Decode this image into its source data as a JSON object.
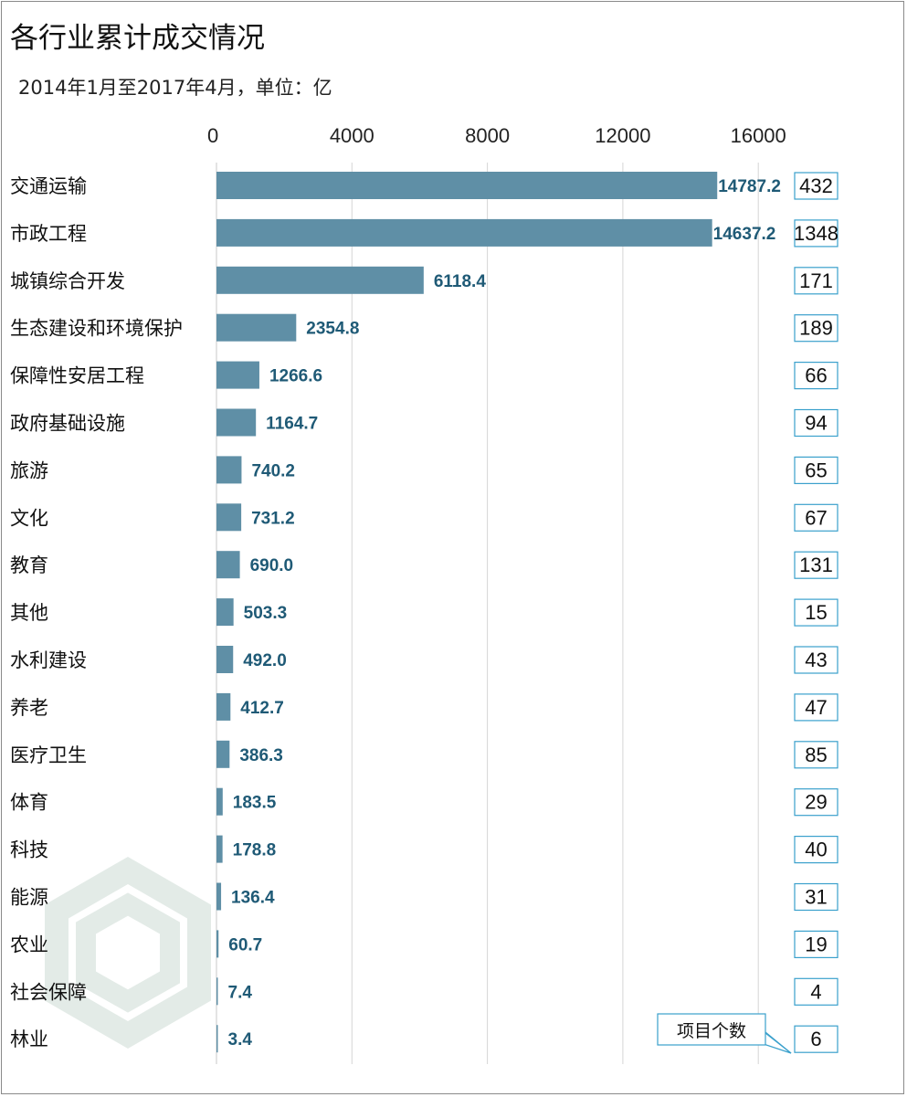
{
  "colors": {
    "bar": "#5f8fa6",
    "value_label": "#1f5a76",
    "count_box_border": "#3aa0cc",
    "gridline": "#d6d6d6",
    "watermark": "#e3ebe7"
  },
  "watermark_icon": "hexagon-logo-icon",
  "chart_data": {
    "type": "bar",
    "orientation": "horizontal",
    "title": "各行业累计成交情况",
    "subtitle": "2014年1月至2017年4月，单位：亿",
    "xlim": [
      0,
      16000
    ],
    "xticks": [
      0,
      4000,
      8000,
      12000,
      16000
    ],
    "xtick_labels": [
      "0",
      "4000",
      "8000",
      "12000",
      "16000"
    ],
    "grid": true,
    "categories": [
      "交通运输",
      "市政工程",
      "城镇综合开发",
      "生态建设和环境保护",
      "保障性安居工程",
      "政府基础设施",
      "旅游",
      "文化",
      "教育",
      "其他",
      "水利建设",
      "养老",
      "医疗卫生",
      "体育",
      "科技",
      "能源",
      "农业",
      "社会保障",
      "林业"
    ],
    "values": [
      14787.2,
      14637.2,
      6118.4,
      2354.8,
      1266.6,
      1164.7,
      740.2,
      731.2,
      690.0,
      503.3,
      492.0,
      412.7,
      386.3,
      183.5,
      178.8,
      136.4,
      60.7,
      7.4,
      3.4
    ],
    "value_labels": [
      "14787.2",
      "14637.2",
      "6118.4",
      "2354.8",
      "1266.6",
      "1164.7",
      "740.2",
      "731.2",
      "690.0",
      "503.3",
      "492.0",
      "412.7",
      "386.3",
      "183.5",
      "178.8",
      "136.4",
      "60.7",
      "7.4",
      "3.4"
    ],
    "project_counts": [
      432,
      1348,
      171,
      189,
      66,
      94,
      65,
      67,
      131,
      15,
      43,
      47,
      85,
      29,
      40,
      31,
      19,
      4,
      6
    ],
    "project_count_label": "项目个数"
  }
}
